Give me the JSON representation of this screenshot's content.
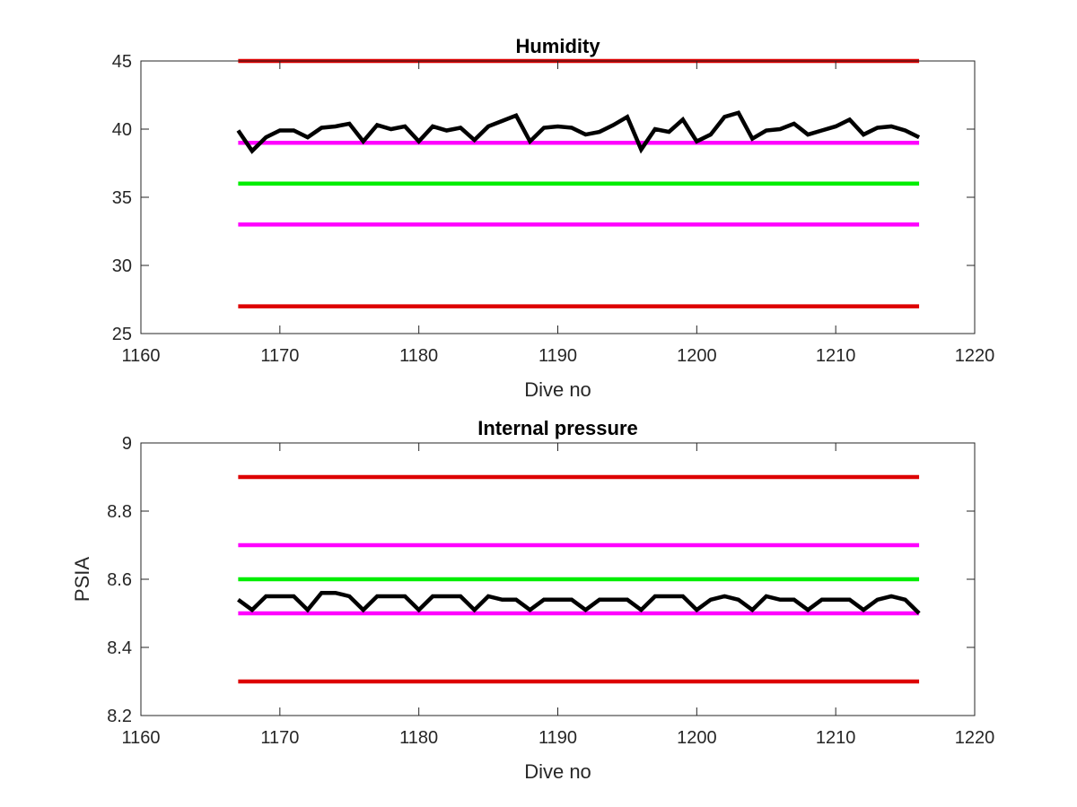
{
  "chart_data": [
    {
      "type": "line",
      "title": "Humidity",
      "xlabel": "Dive no",
      "ylabel": "",
      "xlim": [
        1160,
        1220
      ],
      "ylim": [
        25,
        45
      ],
      "xticks": [
        1160,
        1170,
        1180,
        1190,
        1200,
        1210,
        1220
      ],
      "yticks": [
        25,
        30,
        35,
        40,
        45
      ],
      "grid": false,
      "thresholds": [
        {
          "value": 45,
          "color": "#dd0000",
          "x": [
            1167,
            1216
          ]
        },
        {
          "value": 39,
          "color": "#ff00ff",
          "x": [
            1167,
            1216
          ]
        },
        {
          "value": 36,
          "color": "#00ee00",
          "x": [
            1167,
            1216
          ]
        },
        {
          "value": 33,
          "color": "#ff00ff",
          "x": [
            1167,
            1216
          ]
        },
        {
          "value": 27,
          "color": "#dd0000",
          "x": [
            1167,
            1216
          ]
        }
      ],
      "series": [
        {
          "color": "#000000",
          "x": [
            1167,
            1168,
            1169,
            1170,
            1171,
            1172,
            1173,
            1174,
            1175,
            1176,
            1177,
            1178,
            1179,
            1180,
            1181,
            1182,
            1183,
            1184,
            1185,
            1186,
            1187,
            1188,
            1189,
            1190,
            1191,
            1192,
            1193,
            1194,
            1195,
            1196,
            1197,
            1198,
            1199,
            1200,
            1201,
            1202,
            1203,
            1204,
            1205,
            1206,
            1207,
            1208,
            1209,
            1210,
            1211,
            1212,
            1213,
            1214,
            1215,
            1216
          ],
          "y": [
            39.9,
            38.4,
            39.4,
            39.9,
            39.9,
            39.4,
            40.1,
            40.2,
            40.4,
            39.1,
            40.3,
            40.0,
            40.2,
            39.1,
            40.2,
            39.9,
            40.1,
            39.2,
            40.2,
            40.6,
            41.0,
            39.1,
            40.1,
            40.2,
            40.1,
            39.6,
            39.8,
            40.3,
            40.9,
            38.5,
            40.0,
            39.8,
            40.7,
            39.1,
            39.6,
            40.9,
            41.2,
            39.3,
            39.9,
            40.0,
            40.4,
            39.6,
            39.9,
            40.2,
            40.7,
            39.6,
            40.1,
            40.2,
            39.9,
            39.4
          ]
        }
      ]
    },
    {
      "type": "line",
      "title": "Internal pressure",
      "xlabel": "Dive no",
      "ylabel": "PSIA",
      "xlim": [
        1160,
        1220
      ],
      "ylim": [
        8.2,
        9
      ],
      "xticks": [
        1160,
        1170,
        1180,
        1190,
        1200,
        1210,
        1220
      ],
      "yticks": [
        8.2,
        8.4,
        8.6,
        8.8,
        9
      ],
      "grid": false,
      "thresholds": [
        {
          "value": 8.9,
          "color": "#dd0000",
          "x": [
            1167,
            1216
          ]
        },
        {
          "value": 8.7,
          "color": "#ff00ff",
          "x": [
            1167,
            1216
          ]
        },
        {
          "value": 8.6,
          "color": "#00ee00",
          "x": [
            1167,
            1216
          ]
        },
        {
          "value": 8.5,
          "color": "#ff00ff",
          "x": [
            1167,
            1216
          ]
        },
        {
          "value": 8.3,
          "color": "#dd0000",
          "x": [
            1167,
            1216
          ]
        }
      ],
      "series": [
        {
          "color": "#000000",
          "x": [
            1167,
            1168,
            1169,
            1170,
            1171,
            1172,
            1173,
            1174,
            1175,
            1176,
            1177,
            1178,
            1179,
            1180,
            1181,
            1182,
            1183,
            1184,
            1185,
            1186,
            1187,
            1188,
            1189,
            1190,
            1191,
            1192,
            1193,
            1194,
            1195,
            1196,
            1197,
            1198,
            1199,
            1200,
            1201,
            1202,
            1203,
            1204,
            1205,
            1206,
            1207,
            1208,
            1209,
            1210,
            1211,
            1212,
            1213,
            1214,
            1215,
            1216
          ],
          "y": [
            8.54,
            8.51,
            8.55,
            8.55,
            8.55,
            8.51,
            8.56,
            8.56,
            8.55,
            8.51,
            8.55,
            8.55,
            8.55,
            8.51,
            8.55,
            8.55,
            8.55,
            8.51,
            8.55,
            8.54,
            8.54,
            8.51,
            8.54,
            8.54,
            8.54,
            8.51,
            8.54,
            8.54,
            8.54,
            8.51,
            8.55,
            8.55,
            8.55,
            8.51,
            8.54,
            8.55,
            8.54,
            8.51,
            8.55,
            8.54,
            8.54,
            8.51,
            8.54,
            8.54,
            8.54,
            8.51,
            8.54,
            8.55,
            8.54,
            8.5
          ]
        }
      ]
    }
  ]
}
